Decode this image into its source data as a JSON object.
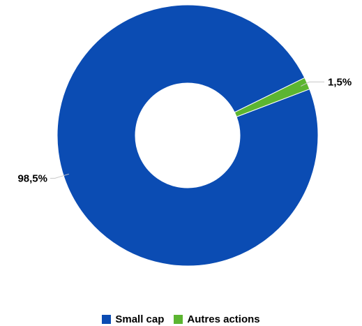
{
  "chart_data": {
    "type": "pie",
    "donut": true,
    "title": "",
    "series": [
      {
        "name": "Small cap",
        "value": 98.5,
        "label": "98,5%",
        "color": "#0b4cb3"
      },
      {
        "name": "Autres actions",
        "value": 1.5,
        "label": "1,5%",
        "color": "#5cb531"
      }
    ],
    "legend": {
      "position": "bottom",
      "items": [
        "Small cap",
        "Autres actions"
      ]
    }
  }
}
